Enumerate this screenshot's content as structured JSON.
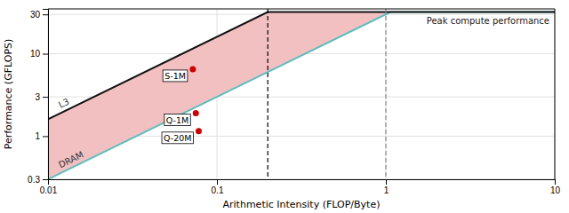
{
  "chart_data": {
    "type": "line",
    "xlabel": "Arithmetic Intensity (FLOP/Byte)",
    "ylabel": "Performance (GFLOPS)",
    "log": true,
    "grid": true,
    "xlim": [
      0.01,
      10
    ],
    "ylim": [
      0.3,
      35
    ],
    "xticks": [
      0.01,
      0.1,
      1,
      10
    ],
    "yticks": [
      0.3,
      1,
      3,
      10,
      30
    ],
    "x": [
      0.01,
      0.2,
      1.0666666666666667,
      10
    ],
    "series": [
      {
        "type": "area",
        "color": "#f2c0c0",
        "values": [
          1.6,
          32,
          32,
          32
        ],
        "lower": [
          0.3,
          6,
          32,
          32
        ]
      },
      {
        "name": "DRAM",
        "type": "line",
        "color": "#5bbcbf",
        "values": [
          0.3,
          6,
          32,
          32
        ]
      },
      {
        "name": "L3",
        "type": "line",
        "color": "#111111",
        "values": [
          1.6,
          32,
          32,
          32
        ]
      },
      {
        "type": "scatter",
        "color": "#cc0000",
        "marker": "circle",
        "x": [
          0.072,
          0.075,
          0.078
        ],
        "values": [
          6.5,
          1.9,
          1.15
        ],
        "labels": [
          "S-1M",
          "Q-1M",
          "Q-20M"
        ]
      }
    ],
    "vlines": [
      {
        "x": 0.2,
        "color": "black",
        "line_style": "dashed"
      },
      {
        "x": 1.0,
        "color": "#888888",
        "line_style": "dashed"
      }
    ],
    "annotations": [
      "Peak compute performance"
    ]
  }
}
